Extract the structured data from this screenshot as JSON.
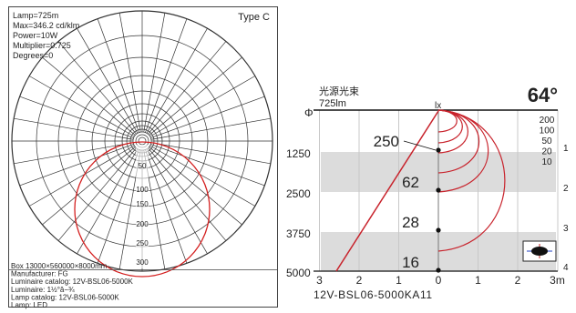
{
  "polar": {
    "info": [
      "Lamp=725m",
      "Max=346.2 cd/klm",
      "Power=10W",
      "Multiplier=0.725",
      "Degrees=0"
    ],
    "type_label": "Type C",
    "ring_labels": [
      "50",
      "100",
      "150",
      "200",
      "250",
      "300"
    ],
    "footer": [
      "Box 13000×560000×8000mm",
      "Manufacturer: FG",
      "Luminaire catalog: 12V-BSL06-5000K",
      "Luminaire: 1½°â−¾",
      "Lamp catalog: 12V-BSL06-5000K",
      "Lamp: LED"
    ],
    "curve_color": "#d42020"
  },
  "cone": {
    "title": "光源光束",
    "flux": "725lm",
    "phi_label": "Φ",
    "lx_label": "lx",
    "angle": "64°",
    "lux_scale": [
      "200",
      "100",
      "50",
      "20",
      "10"
    ],
    "left_axis": [
      "1250",
      "2500",
      "3750",
      "5000"
    ],
    "right_axis": [
      "1",
      "2",
      "3",
      "4"
    ],
    "lux_values": [
      "250",
      "62",
      "28",
      "16"
    ],
    "x_labels": [
      "3",
      "2",
      "1",
      "0",
      "1",
      "2",
      "3m"
    ],
    "product": "12V-BSL06-5000KA11",
    "line_color": "#c8232c",
    "band_color": "#dcdcdc"
  }
}
